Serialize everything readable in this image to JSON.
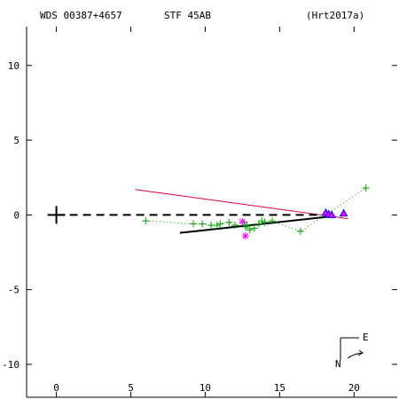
{
  "header": {
    "wds": "WDS 00387+4657",
    "disc": "STF  45AB",
    "orbit_ref": "(Hrt2017a)"
  },
  "compass": {
    "east": "E",
    "north": "N"
  },
  "colors": {
    "axes": "#000000",
    "observations": "#00a000",
    "speckle": "#ff00ff",
    "recent": "#0000ff",
    "orbit_line": "#e0003c"
  },
  "chart_data": {
    "type": "scatter",
    "xlim": [
      -2,
      22.9
    ],
    "ylim": [
      -12.2,
      12.6
    ],
    "y_inverted": true,
    "x_ticks": [
      0,
      5,
      10,
      15,
      20
    ],
    "y_ticks": [
      10,
      5,
      0,
      -5,
      -10
    ],
    "x_tick_labels": [
      "0",
      "5",
      "10",
      "15",
      "20"
    ],
    "y_tick_labels": [
      "10",
      "5",
      "0",
      "-5",
      "-10"
    ],
    "primary": [
      0,
      0
    ],
    "line_of_nodes": [
      [
        0,
        0
      ],
      [
        18.5,
        0
      ]
    ],
    "fitted_arc": [
      [
        8.3,
        -1.2
      ],
      [
        18.5,
        -0.1
      ]
    ],
    "orbit_segment": [
      [
        5.3,
        1.7
      ],
      [
        19.6,
        -0.25
      ]
    ],
    "observations": [
      [
        20.8,
        1.8
      ],
      [
        6.0,
        -0.4
      ],
      [
        9.2,
        -0.6
      ],
      [
        9.8,
        -0.6
      ],
      [
        10.4,
        -0.7
      ],
      [
        10.8,
        -0.7
      ],
      [
        11.0,
        -0.6
      ],
      [
        11.6,
        -0.5
      ],
      [
        12.0,
        -0.7
      ],
      [
        12.6,
        -0.5
      ],
      [
        12.8,
        -0.7
      ],
      [
        13.0,
        -1.0
      ],
      [
        13.3,
        -0.9
      ],
      [
        13.6,
        -0.6
      ],
      [
        14.0,
        -0.5
      ],
      [
        14.5,
        -0.4
      ],
      [
        13.8,
        -0.4
      ],
      [
        16.4,
        -1.1
      ],
      [
        12.7,
        -0.8
      ]
    ],
    "speckle": [
      [
        12.7,
        -1.4
      ],
      [
        12.5,
        -0.45
      ]
    ],
    "recent": [
      [
        18.1,
        0.15
      ],
      [
        18.3,
        0.05
      ],
      [
        18.5,
        0.0
      ],
      [
        19.3,
        0.1
      ]
    ]
  }
}
